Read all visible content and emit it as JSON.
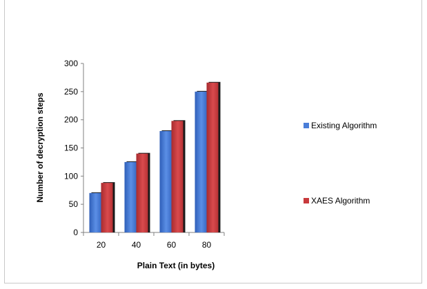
{
  "chart_data": {
    "type": "bar",
    "title": "",
    "xlabel": "Plain Text (in bytes)",
    "ylabel": "Number of decryption steps",
    "categories": [
      "20",
      "40",
      "60",
      "80"
    ],
    "ylim": [
      0,
      300
    ],
    "yticks": [
      0,
      50,
      100,
      150,
      200,
      250,
      300
    ],
    "grid": false,
    "legend_position": "right",
    "series": [
      {
        "name": "Existing Algorithm",
        "color": "#4a7ed8",
        "values": [
          70,
          125,
          180,
          250
        ]
      },
      {
        "name": "XAES Algorithm",
        "color": "#c8393c",
        "values": [
          88,
          140,
          198,
          266
        ]
      }
    ]
  }
}
